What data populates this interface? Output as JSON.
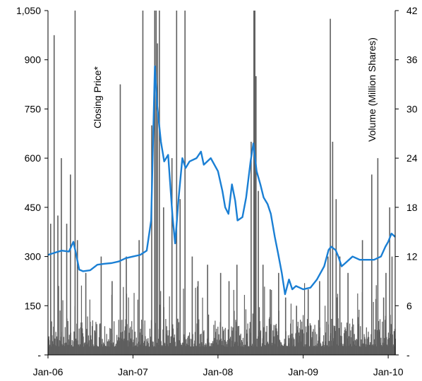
{
  "chart_data": {
    "type": "line+bar",
    "left_axis": {
      "label": "Closing Price*",
      "ylim": [
        0,
        1050
      ],
      "ticks": [
        0,
        150,
        300,
        450,
        600,
        750,
        900,
        1050
      ],
      "tick_labels": [
        "-",
        "150",
        "300",
        "450",
        "600",
        "750",
        "900",
        "1,050"
      ]
    },
    "right_axis": {
      "label": "Volume (Million Shares)",
      "ylim": [
        0,
        42
      ],
      "ticks": [
        0,
        6,
        12,
        18,
        24,
        30,
        36,
        42
      ],
      "tick_labels": [
        "-",
        "6",
        "12",
        "18",
        "24",
        "30",
        "36",
        "42"
      ]
    },
    "x_axis": {
      "range": [
        "2006-01-01",
        "2010-01-31"
      ],
      "ticks": [
        "2006-01-01",
        "2007-01-01",
        "2008-01-01",
        "2009-01-01",
        "2010-01-01"
      ],
      "tick_labels": [
        "Jan-06",
        "Jan-07",
        "Jan-08",
        "Jan-09",
        "Jan-10"
      ]
    },
    "grid": false,
    "colors": {
      "price_line": "#1a7fd4",
      "volume_bars": "#5f5f5f"
    },
    "price_series": {
      "name": "Closing Price*",
      "points": [
        [
          "2006-01-01",
          305
        ],
        [
          "2006-02-01",
          312
        ],
        [
          "2006-03-01",
          318
        ],
        [
          "2006-04-01",
          315
        ],
        [
          "2006-04-20",
          345
        ],
        [
          "2006-05-01",
          310
        ],
        [
          "2006-05-15",
          260
        ],
        [
          "2006-06-01",
          255
        ],
        [
          "2006-07-01",
          258
        ],
        [
          "2006-08-01",
          275
        ],
        [
          "2006-09-01",
          278
        ],
        [
          "2006-10-01",
          280
        ],
        [
          "2006-11-01",
          285
        ],
        [
          "2006-12-01",
          295
        ],
        [
          "2007-01-01",
          300
        ],
        [
          "2007-02-01",
          305
        ],
        [
          "2007-03-01",
          318
        ],
        [
          "2007-03-20",
          410
        ],
        [
          "2007-04-05",
          880
        ],
        [
          "2007-04-15",
          760
        ],
        [
          "2007-05-01",
          650
        ],
        [
          "2007-05-15",
          590
        ],
        [
          "2007-06-01",
          610
        ],
        [
          "2007-06-20",
          420
        ],
        [
          "2007-07-01",
          340
        ],
        [
          "2007-07-15",
          470
        ],
        [
          "2007-08-01",
          600
        ],
        [
          "2007-08-15",
          570
        ],
        [
          "2007-09-01",
          590
        ],
        [
          "2007-10-01",
          600
        ],
        [
          "2007-10-20",
          620
        ],
        [
          "2007-11-01",
          580
        ],
        [
          "2007-12-01",
          600
        ],
        [
          "2008-01-01",
          560
        ],
        [
          "2008-01-20",
          500
        ],
        [
          "2008-02-01",
          450
        ],
        [
          "2008-02-15",
          430
        ],
        [
          "2008-03-01",
          520
        ],
        [
          "2008-03-15",
          470
        ],
        [
          "2008-03-25",
          410
        ],
        [
          "2008-04-15",
          420
        ],
        [
          "2008-05-01",
          480
        ],
        [
          "2008-05-20",
          590
        ],
        [
          "2008-06-01",
          645
        ],
        [
          "2008-06-15",
          560
        ],
        [
          "2008-07-01",
          520
        ],
        [
          "2008-07-15",
          480
        ],
        [
          "2008-08-01",
          460
        ],
        [
          "2008-08-15",
          430
        ],
        [
          "2008-09-01",
          360
        ],
        [
          "2008-09-15",
          310
        ],
        [
          "2008-10-01",
          250
        ],
        [
          "2008-10-15",
          185
        ],
        [
          "2008-11-01",
          230
        ],
        [
          "2008-11-15",
          200
        ],
        [
          "2008-12-01",
          210
        ],
        [
          "2009-01-01",
          200
        ],
        [
          "2009-02-01",
          205
        ],
        [
          "2009-03-01",
          230
        ],
        [
          "2009-04-01",
          270
        ],
        [
          "2009-04-20",
          320
        ],
        [
          "2009-05-01",
          330
        ],
        [
          "2009-05-20",
          320
        ],
        [
          "2009-06-01",
          300
        ],
        [
          "2009-06-15",
          270
        ],
        [
          "2009-07-01",
          280
        ],
        [
          "2009-08-01",
          300
        ],
        [
          "2009-09-01",
          290
        ],
        [
          "2009-10-01",
          290
        ],
        [
          "2009-11-01",
          290
        ],
        [
          "2009-12-01",
          300
        ],
        [
          "2009-12-20",
          330
        ],
        [
          "2010-01-01",
          345
        ],
        [
          "2010-01-15",
          370
        ],
        [
          "2010-01-31",
          360
        ]
      ]
    },
    "volume_series": {
      "name": "Volume (Million Shares)",
      "typical": 2.5,
      "spikes": [
        [
          "2006-01-10",
          16
        ],
        [
          "2006-01-25",
          39
        ],
        [
          "2006-02-10",
          17
        ],
        [
          "2006-02-25",
          24
        ],
        [
          "2006-03-20",
          16
        ],
        [
          "2006-04-05",
          22
        ],
        [
          "2006-04-25",
          42
        ],
        [
          "2006-05-05",
          14
        ],
        [
          "2006-06-10",
          10
        ],
        [
          "2006-08-15",
          12
        ],
        [
          "2006-10-01",
          9
        ],
        [
          "2006-11-05",
          33
        ],
        [
          "2006-12-01",
          12
        ],
        [
          "2007-01-25",
          14
        ],
        [
          "2007-02-10",
          42
        ],
        [
          "2007-03-20",
          28
        ],
        [
          "2007-04-02",
          42
        ],
        [
          "2007-04-08",
          42
        ],
        [
          "2007-04-14",
          38
        ],
        [
          "2007-04-22",
          42
        ],
        [
          "2007-05-10",
          18
        ],
        [
          "2007-06-15",
          24
        ],
        [
          "2007-07-05",
          42
        ],
        [
          "2007-07-20",
          19
        ],
        [
          "2007-08-10",
          42
        ],
        [
          "2007-09-10",
          12
        ],
        [
          "2007-10-05",
          9
        ],
        [
          "2007-11-15",
          11
        ],
        [
          "2008-01-10",
          10
        ],
        [
          "2008-02-15",
          9
        ],
        [
          "2008-03-20",
          11
        ],
        [
          "2008-05-20",
          26
        ],
        [
          "2008-06-01",
          42
        ],
        [
          "2008-06-05",
          42
        ],
        [
          "2008-06-10",
          34
        ],
        [
          "2008-06-20",
          20
        ],
        [
          "2008-07-10",
          11
        ],
        [
          "2008-08-10",
          8
        ],
        [
          "2008-09-15",
          10
        ],
        [
          "2008-10-15",
          7
        ],
        [
          "2008-12-01",
          6
        ],
        [
          "2009-01-20",
          8
        ],
        [
          "2009-03-10",
          9
        ],
        [
          "2009-04-15",
          12
        ],
        [
          "2009-04-25",
          41
        ],
        [
          "2009-05-05",
          26
        ],
        [
          "2009-05-20",
          19
        ],
        [
          "2009-06-05",
          12
        ],
        [
          "2009-07-10",
          10
        ],
        [
          "2009-09-10",
          14
        ],
        [
          "2009-10-20",
          22
        ],
        [
          "2009-11-15",
          24
        ],
        [
          "2009-12-10",
          7
        ],
        [
          "2009-12-20",
          10
        ],
        [
          "2010-01-05",
          18
        ],
        [
          "2010-01-15",
          12
        ]
      ]
    }
  }
}
